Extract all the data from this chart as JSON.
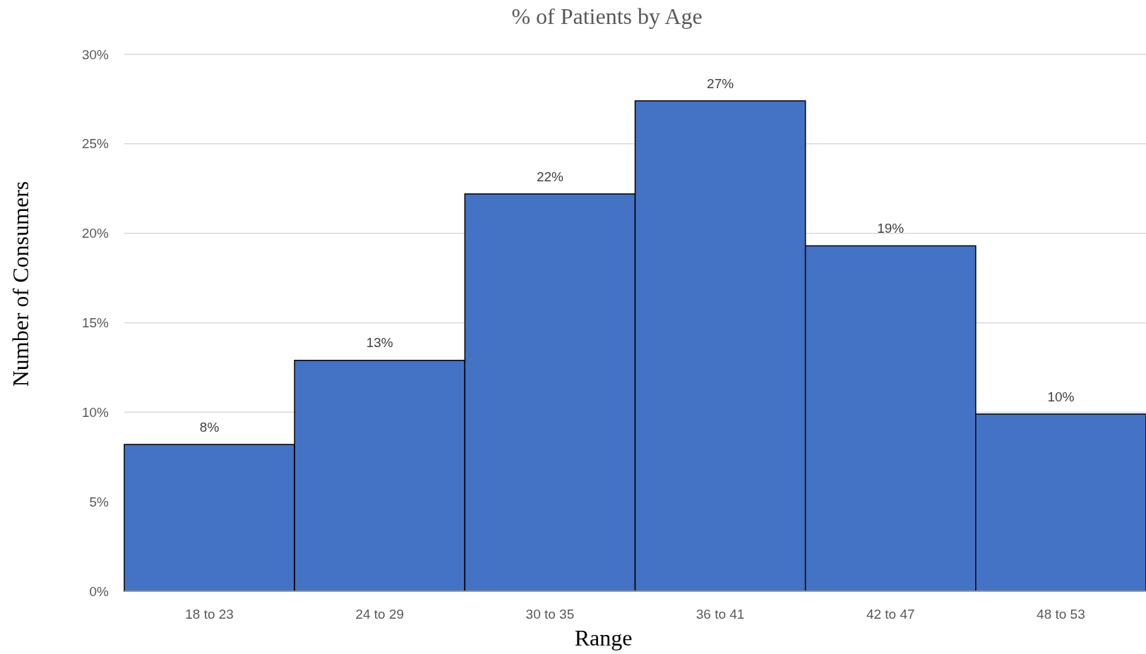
{
  "chart_data": {
    "type": "bar",
    "title": "% of Patients by Age",
    "xlabel": "Range",
    "ylabel": "Number of Consumers",
    "categories": [
      "18 to 23",
      "24 to 29",
      "30 to 35",
      "36 to 41",
      "42 to 47",
      "48 to 53"
    ],
    "values": [
      8.2,
      12.9,
      22.2,
      27.4,
      19.3,
      9.9
    ],
    "value_labels": [
      "8%",
      "13%",
      "22%",
      "27%",
      "19%",
      "10%"
    ],
    "color": "#4472c4",
    "ylim": [
      0,
      30
    ],
    "yticks": [
      {
        "value": 0,
        "label": "0%"
      },
      {
        "value": 5,
        "label": "5%"
      },
      {
        "value": 10,
        "label": "10%"
      },
      {
        "value": 15,
        "label": "15%"
      },
      {
        "value": 20,
        "label": "20%"
      },
      {
        "value": 25,
        "label": "25%"
      },
      {
        "value": 30,
        "label": "30%"
      }
    ],
    "grid": "y"
  }
}
